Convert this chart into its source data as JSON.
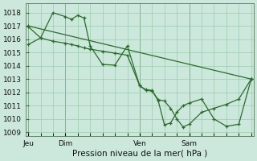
{
  "background_color": "#cce8dc",
  "grid_color": "#99ccaa",
  "line_color": "#2a6b2a",
  "xlabel": "Pression niveau de la mer( hPa )",
  "ylim": [
    1008.7,
    1018.7
  ],
  "yticks": [
    1009,
    1010,
    1011,
    1012,
    1013,
    1014,
    1015,
    1016,
    1017,
    1018
  ],
  "xtick_labels": [
    "Jeu",
    "Dim",
    "Ven",
    "Sam"
  ],
  "xtick_positions": [
    0,
    3,
    9,
    13
  ],
  "xlim": [
    -0.2,
    18.2
  ],
  "vline_positions": [
    0,
    3,
    9,
    13
  ],
  "s1x": [
    0,
    18
  ],
  "s1y": [
    1017.0,
    1013.0
  ],
  "s2x": [
    0,
    1,
    2,
    3,
    3.5,
    4,
    4.5,
    5,
    6,
    7,
    8,
    9,
    9.5,
    10,
    10.5,
    11,
    11.5,
    12,
    12.5,
    13,
    14,
    15,
    16,
    17,
    18
  ],
  "s2y": [
    1015.6,
    1016.1,
    1018.0,
    1017.7,
    1017.5,
    1017.8,
    1017.6,
    1015.5,
    1014.1,
    1014.05,
    1015.5,
    1012.5,
    1012.2,
    1012.15,
    1011.35,
    1009.55,
    1009.7,
    1010.5,
    1011.0,
    1011.2,
    1011.5,
    1010.0,
    1009.45,
    1009.6,
    1013.0
  ],
  "s3x": [
    0,
    1,
    2,
    3,
    3.5,
    4,
    4.5,
    5,
    6,
    7,
    8,
    9,
    9.5,
    10,
    10.5,
    11,
    11.5,
    12,
    12.5,
    13,
    14,
    15,
    16,
    17,
    18
  ],
  "s3y": [
    1016.95,
    1016.1,
    1015.85,
    1015.7,
    1015.6,
    1015.5,
    1015.35,
    1015.25,
    1015.1,
    1014.95,
    1014.8,
    1012.5,
    1012.15,
    1012.1,
    1011.45,
    1011.35,
    1010.8,
    1010.0,
    1009.4,
    1009.6,
    1010.5,
    1010.8,
    1011.1,
    1011.5,
    1013.0
  ]
}
